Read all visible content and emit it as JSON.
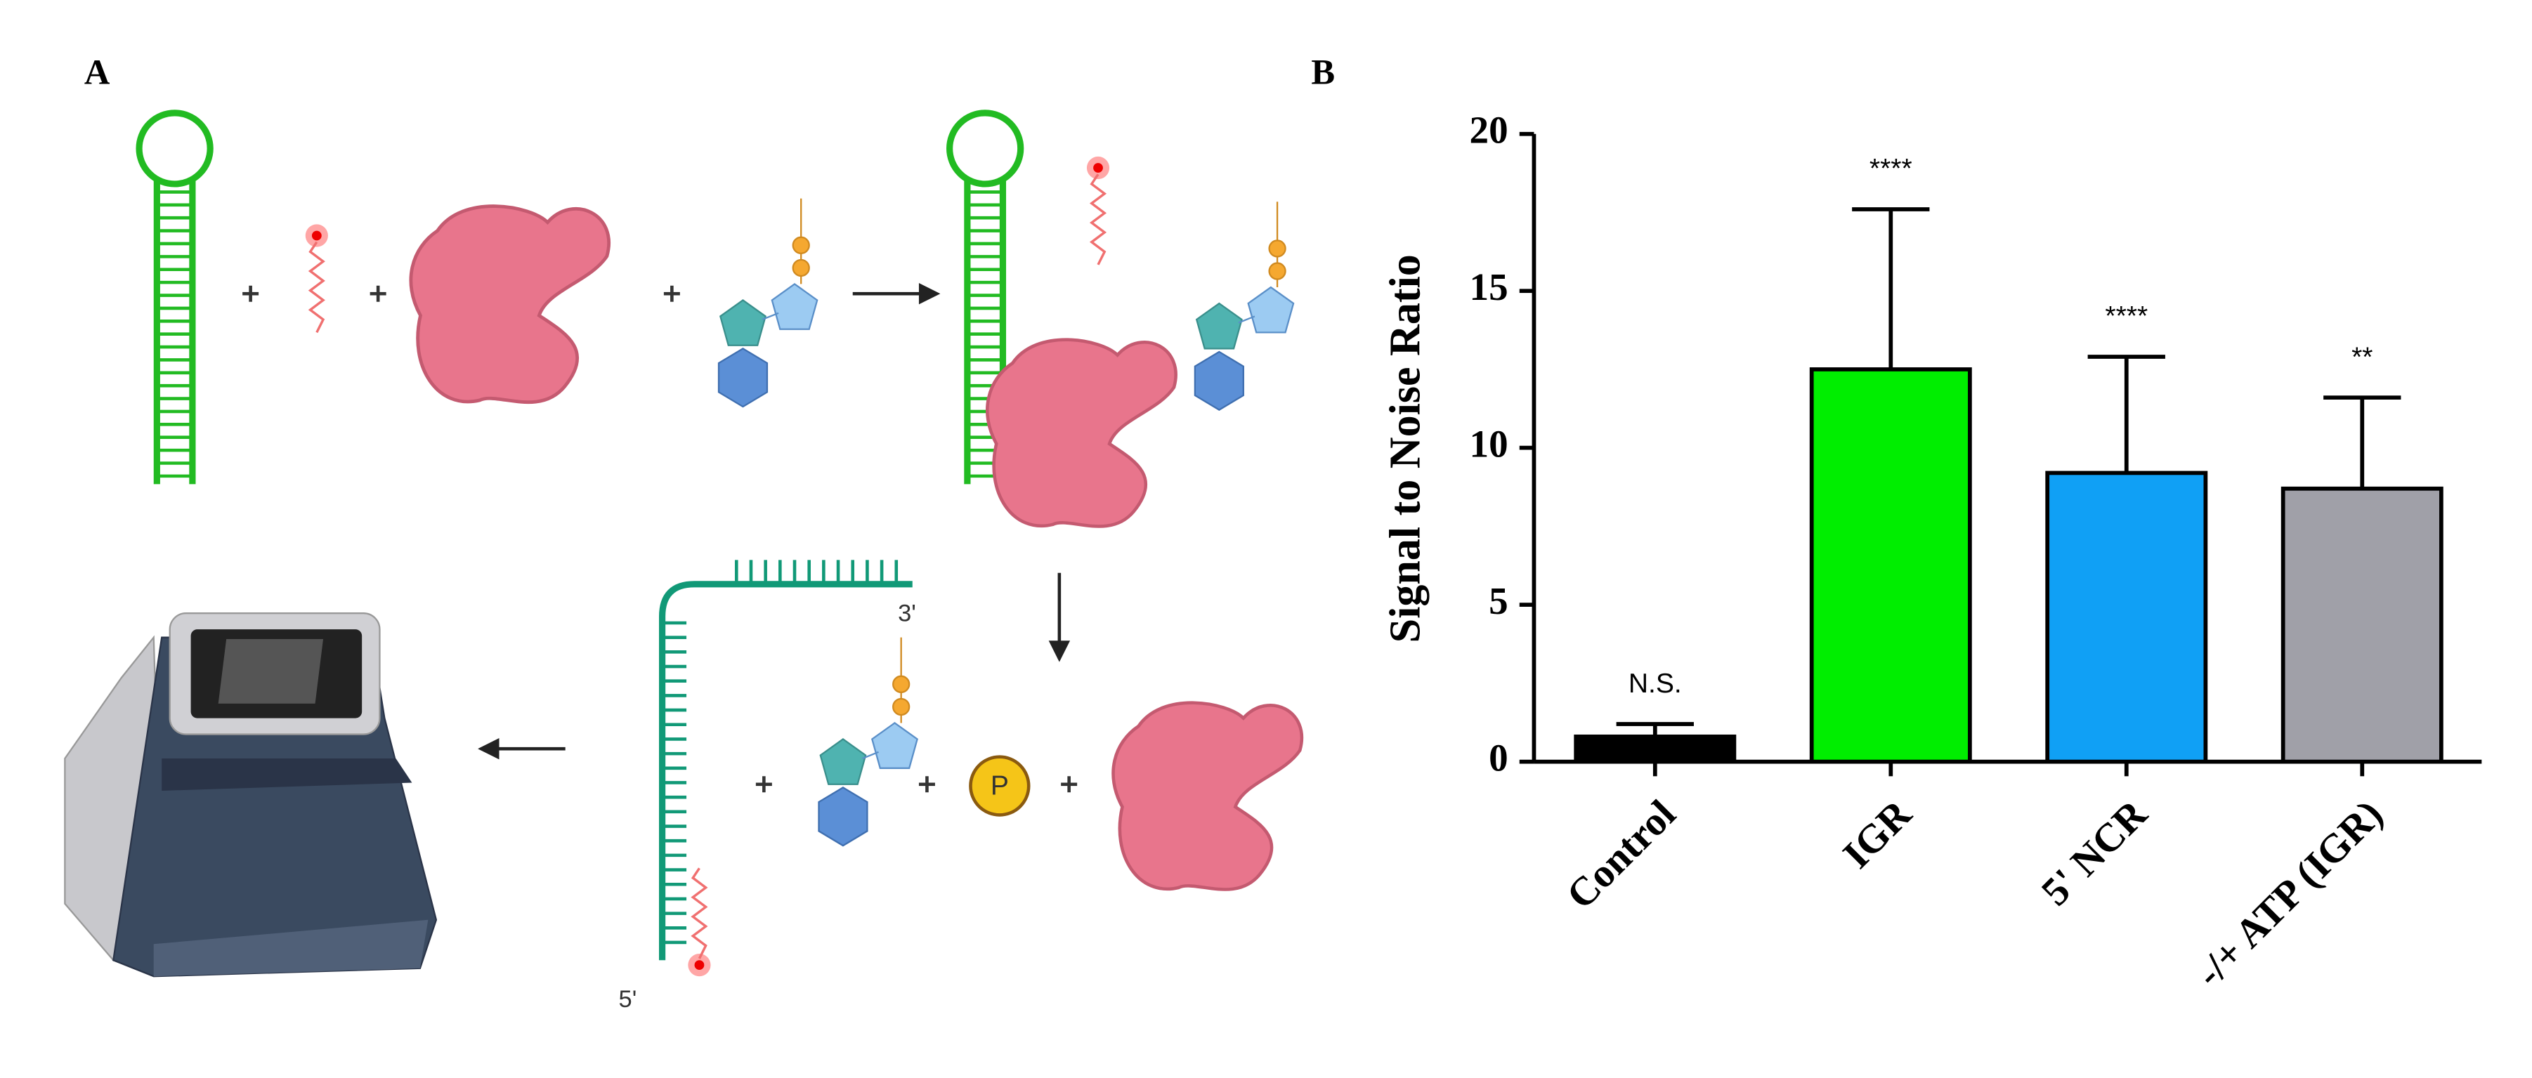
{
  "panel_labels": [
    "A",
    "B"
  ],
  "diagram": {
    "labels": [
      "3'",
      "5'",
      "P"
    ]
  },
  "chart_data": {
    "type": "bar",
    "y_label": "Signal to Noise Ratio",
    "categories": [
      "Control",
      "IGR",
      "5' NCR",
      "-/+ ATP (IGR)"
    ],
    "values": [
      0.8,
      12.5,
      9.2,
      8.7
    ],
    "errors": [
      0.4,
      5.1,
      3.7,
      2.9
    ],
    "annotations": [
      "N.S.",
      "****",
      "****",
      "**"
    ],
    "colors": [
      "#000000",
      "#00ee00",
      "#10a0f5",
      "#a0a0a8"
    ],
    "ylim": [
      0,
      20
    ],
    "yticks": [
      0,
      5,
      10,
      15,
      20
    ]
  }
}
